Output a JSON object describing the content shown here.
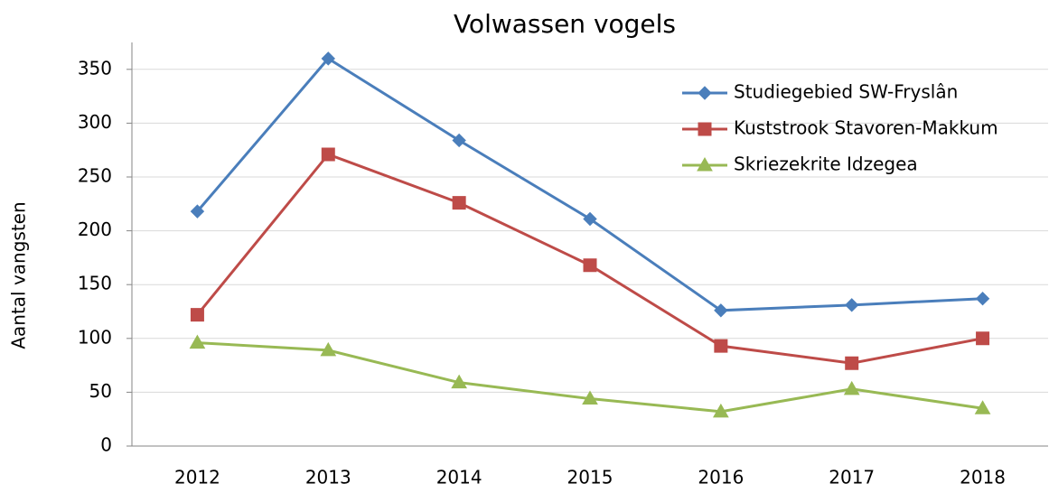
{
  "chart_data": {
    "type": "line",
    "title": "Volwassen vogels",
    "y_label": "Aantal vangsten",
    "categories": [
      "2012",
      "2013",
      "2014",
      "2015",
      "2016",
      "2017",
      "2018"
    ],
    "series": [
      {
        "name": "Studiegebied SW-Fryslân",
        "color": "#4a7ebb",
        "marker": "diamond",
        "values": [
          218,
          360,
          284,
          211,
          126,
          131,
          137
        ]
      },
      {
        "name": "Kuststrook Stavoren-Makkum",
        "color": "#be4b48",
        "marker": "square",
        "values": [
          122,
          271,
          226,
          168,
          93,
          77,
          100
        ]
      },
      {
        "name": "Skriezekrite Idzegea",
        "color": "#98b954",
        "marker": "triangle",
        "values": [
          96,
          89,
          59,
          44,
          32,
          53,
          35
        ]
      }
    ],
    "ylim": [
      0,
      375
    ],
    "yticks": [
      0,
      50,
      100,
      150,
      200,
      250,
      300,
      350
    ],
    "grid": true,
    "legend": "upper right"
  }
}
